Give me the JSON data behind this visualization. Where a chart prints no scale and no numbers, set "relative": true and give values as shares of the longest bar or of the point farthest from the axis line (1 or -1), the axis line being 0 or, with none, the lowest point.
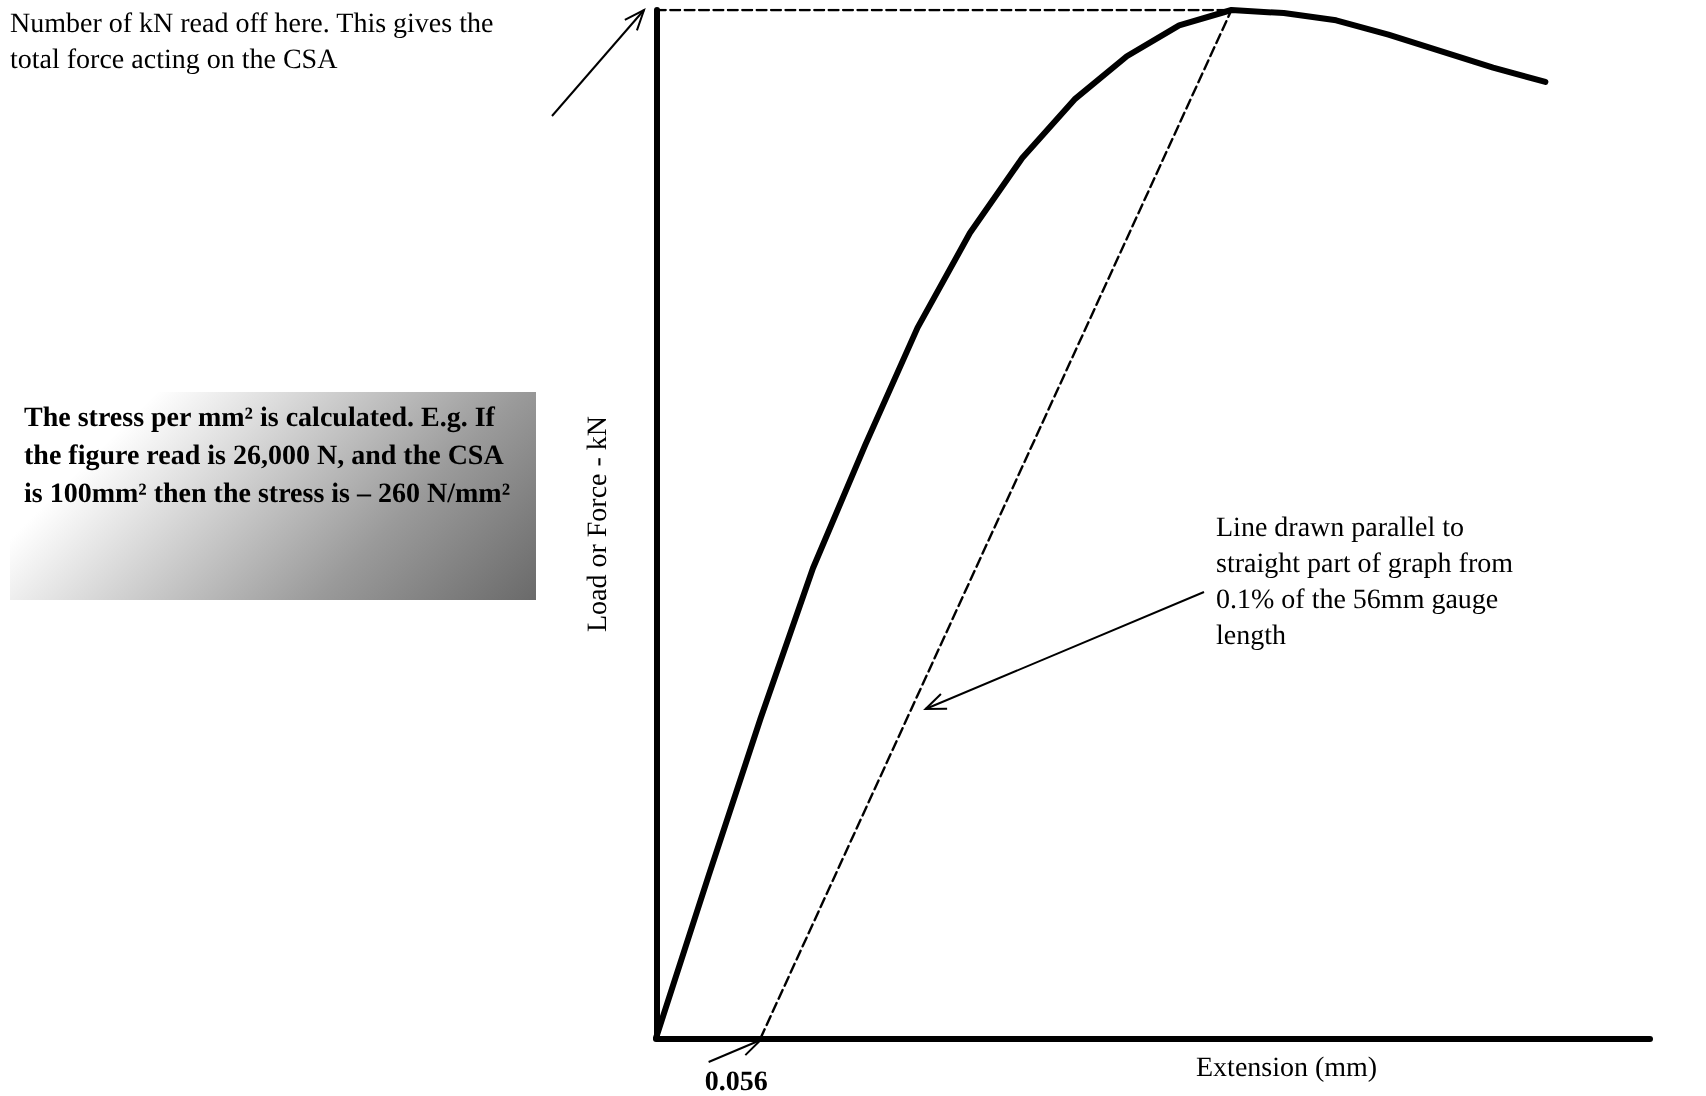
{
  "chart_data": {
    "type": "line",
    "relative": true,
    "xlabel": "Extension (mm)",
    "ylabel": "Load or Force - kN",
    "grid": false,
    "marker": "none",
    "categories": [
      null,
      null,
      null,
      null,
      null,
      null,
      null,
      null,
      null,
      null,
      null,
      null,
      null,
      null,
      null,
      null,
      null,
      null,
      null,
      null
    ],
    "series": [
      {
        "color": "#000000",
        "line_style": "solid",
        "values": [
          0,
          0.157,
          0.311,
          0.457,
          0.577,
          0.691,
          0.783,
          0.856,
          0.913,
          0.955,
          0.985,
          1,
          0.997,
          0.99,
          0.976,
          0.96,
          0.944,
          0.93,
          null,
          null
        ]
      },
      {
        "color": "#000000",
        "line_style": "dashed",
        "values": [
          null,
          null,
          0,
          null,
          null,
          null,
          null,
          null,
          null,
          null,
          null,
          1,
          null,
          null,
          null,
          null,
          null,
          null,
          null,
          null
        ]
      },
      {
        "color": "#000000",
        "line_style": "dashed",
        "values": [
          1,
          null,
          null,
          null,
          null,
          null,
          null,
          null,
          null,
          null,
          null,
          1,
          null,
          null,
          null,
          null,
          null,
          null,
          null,
          null
        ]
      }
    ],
    "annotations": [
      "Number of kN read off here.  This gives the total force acting on the CSA",
      "Line drawn parallel to straight part of graph from 0.1% of the 56mm gauge length",
      "The stress per mm² is calculated.  E.g. If the figure read is 26,000 N, and the CSA is 100mm² then the stress is – 260 N/mm²",
      "0.056"
    ]
  }
}
